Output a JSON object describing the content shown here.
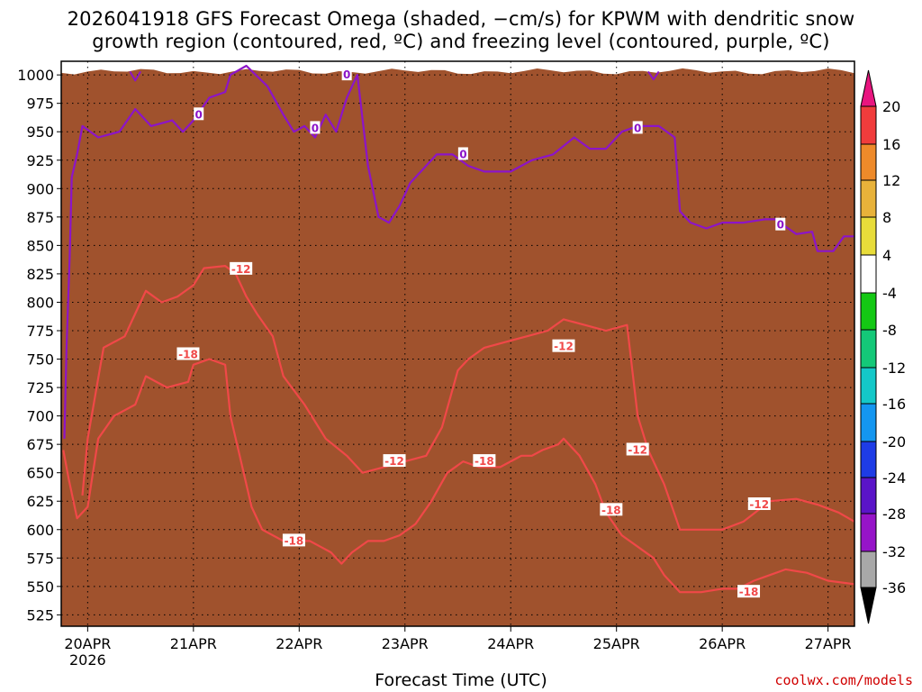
{
  "title_line1": "2026041918 GFS Forecast Omega (shaded, −cm/s) for KPWM with dendritic snow",
  "title_line2": "growth region (contoured, red, ºC) and freezing level (contoured, purple, ºC)",
  "credit": "coolwx.com/models",
  "chart_data": {
    "type": "heatmap",
    "title": "2026041918 GFS Forecast Omega (shaded, −cm/s) for KPWM with dendritic snow growth region (contoured, red, ºC) and freezing level (contoured, purple, ºC)",
    "xlabel": "Forecast Time (UTC)",
    "ylabel": "",
    "x_ticks": [
      "20APR",
      "21APR",
      "22APR",
      "23APR",
      "24APR",
      "25APR",
      "26APR",
      "27APR"
    ],
    "x_tick_sublabel": "2026",
    "xlim_days": [
      19.75,
      27.25
    ],
    "y_ticks": [
      525,
      550,
      575,
      600,
      625,
      650,
      675,
      700,
      725,
      750,
      775,
      800,
      825,
      850,
      875,
      900,
      925,
      950,
      975,
      1000
    ],
    "ylim_hpa": [
      1012,
      515
    ],
    "grid": true,
    "colorbar": {
      "labels": [
        "20",
        "16",
        "12",
        "8",
        "4",
        "-4",
        "-8",
        "-12",
        "-16",
        "-20",
        "-24",
        "-28",
        "-32",
        "-36"
      ],
      "colors": {
        "c20": "#e8157f",
        "c16": "#f03c3c",
        "c12": "#ee8a2a",
        "c8": "#e8b23a",
        "c4": "#e8dc3a",
        "cwhite": "#ffffff",
        "cm4": "#14c814",
        "cm8": "#14c878",
        "cm12": "#14c8c8",
        "cm16": "#1496f0",
        "cm20": "#1e3ce6",
        "cm24": "#5a14c8",
        "cm28": "#9614c8",
        "cm32": "#a8a8a8",
        "cm36": "#000000"
      }
    },
    "contours": {
      "dendritic_red": {
        "color": "#f04848",
        "labels": [
          {
            "text": "-18",
            "day": 20.95,
            "hpa": 754
          },
          {
            "text": "-12",
            "day": 21.45,
            "hpa": 829
          },
          {
            "text": "-18",
            "day": 21.95,
            "hpa": 590
          },
          {
            "text": "-12",
            "day": 22.9,
            "hpa": 660
          },
          {
            "text": "-18",
            "day": 23.75,
            "hpa": 660
          },
          {
            "text": "-12",
            "day": 24.5,
            "hpa": 761
          },
          {
            "text": "-18",
            "day": 24.95,
            "hpa": 617
          },
          {
            "text": "-12",
            "day": 25.2,
            "hpa": 670
          },
          {
            "text": "-18",
            "day": 26.25,
            "hpa": 545
          },
          {
            "text": "-12",
            "day": 26.35,
            "hpa": 622
          }
        ],
        "line_18": [
          [
            19.77,
            670
          ],
          [
            19.82,
            645
          ],
          [
            19.9,
            610
          ],
          [
            20.0,
            620
          ],
          [
            20.05,
            650
          ],
          [
            20.1,
            680
          ],
          [
            20.25,
            700
          ],
          [
            20.45,
            710
          ],
          [
            20.55,
            735
          ],
          [
            20.75,
            725
          ],
          [
            20.95,
            730
          ],
          [
            21.0,
            745
          ],
          [
            21.15,
            750
          ],
          [
            21.3,
            745
          ],
          [
            21.35,
            700
          ],
          [
            21.45,
            660
          ],
          [
            21.55,
            620
          ],
          [
            21.65,
            600
          ],
          [
            21.85,
            590
          ],
          [
            22.1,
            590
          ],
          [
            22.2,
            585
          ],
          [
            22.3,
            580
          ],
          [
            22.4,
            570
          ],
          [
            22.5,
            580
          ],
          [
            22.65,
            590
          ],
          [
            22.8,
            590
          ],
          [
            22.95,
            595
          ],
          [
            23.1,
            605
          ],
          [
            23.25,
            625
          ],
          [
            23.4,
            650
          ],
          [
            23.55,
            660
          ],
          [
            23.7,
            655
          ],
          [
            23.9,
            655
          ],
          [
            24.0,
            660
          ],
          [
            24.1,
            665
          ],
          [
            24.2,
            665
          ],
          [
            24.3,
            670
          ],
          [
            24.45,
            675
          ],
          [
            24.5,
            680
          ],
          [
            24.65,
            665
          ],
          [
            24.8,
            640
          ],
          [
            24.9,
            615
          ],
          [
            25.05,
            595
          ],
          [
            25.2,
            585
          ],
          [
            25.35,
            575
          ],
          [
            25.45,
            560
          ],
          [
            25.6,
            545
          ],
          [
            25.8,
            545
          ],
          [
            26.0,
            548
          ],
          [
            26.15,
            548
          ],
          [
            26.3,
            555
          ],
          [
            26.45,
            560
          ],
          [
            26.6,
            565
          ],
          [
            26.8,
            562
          ],
          [
            27.0,
            555
          ],
          [
            27.25,
            552
          ]
        ],
        "line_12": [
          [
            19.95,
            630
          ],
          [
            20.0,
            680
          ],
          [
            20.15,
            760
          ],
          [
            20.35,
            770
          ],
          [
            20.45,
            790
          ],
          [
            20.55,
            810
          ],
          [
            20.7,
            800
          ],
          [
            20.85,
            805
          ],
          [
            21.0,
            815
          ],
          [
            21.1,
            830
          ],
          [
            21.3,
            832
          ],
          [
            21.4,
            825
          ],
          [
            21.5,
            805
          ],
          [
            21.6,
            790
          ],
          [
            21.75,
            770
          ],
          [
            21.85,
            735
          ],
          [
            22.05,
            710
          ],
          [
            22.25,
            680
          ],
          [
            22.45,
            665
          ],
          [
            22.6,
            650
          ],
          [
            22.8,
            655
          ],
          [
            23.0,
            660
          ],
          [
            23.2,
            665
          ],
          [
            23.35,
            690
          ],
          [
            23.5,
            740
          ],
          [
            23.6,
            750
          ],
          [
            23.75,
            760
          ],
          [
            23.95,
            765
          ],
          [
            24.15,
            770
          ],
          [
            24.35,
            775
          ],
          [
            24.5,
            785
          ],
          [
            24.7,
            780
          ],
          [
            24.9,
            775
          ],
          [
            25.1,
            780
          ],
          [
            25.2,
            700
          ],
          [
            25.3,
            670
          ],
          [
            25.45,
            640
          ],
          [
            25.6,
            600
          ],
          [
            25.8,
            600
          ],
          [
            26.0,
            600
          ],
          [
            26.2,
            607
          ],
          [
            26.45,
            625
          ],
          [
            26.7,
            627
          ],
          [
            26.9,
            622
          ],
          [
            27.1,
            615
          ],
          [
            27.25,
            607
          ]
        ]
      },
      "freezing_purple": {
        "color": "#8c14c8",
        "labels": [
          {
            "text": "0",
            "day": 21.05,
            "hpa": 965
          },
          {
            "text": "0",
            "day": 22.15,
            "hpa": 953
          },
          {
            "text": "0",
            "day": 22.45,
            "hpa": 1000
          },
          {
            "text": "0",
            "day": 23.55,
            "hpa": 930
          },
          {
            "text": "0",
            "day": 25.2,
            "hpa": 953
          },
          {
            "text": "0",
            "day": 26.55,
            "hpa": 868
          }
        ],
        "line_0": [
          [
            19.85,
            910
          ],
          [
            19.9,
            930
          ],
          [
            19.95,
            955
          ],
          [
            20.1,
            945
          ],
          [
            20.3,
            950
          ],
          [
            20.45,
            970
          ],
          [
            20.6,
            955
          ],
          [
            20.8,
            960
          ],
          [
            20.9,
            950
          ],
          [
            21.0,
            960
          ],
          [
            21.15,
            980
          ],
          [
            21.3,
            985
          ],
          [
            21.35,
            1000
          ],
          [
            21.5,
            1008
          ],
          [
            21.7,
            990
          ],
          [
            21.85,
            965
          ],
          [
            21.95,
            950
          ],
          [
            22.05,
            955
          ],
          [
            22.15,
            945
          ],
          [
            22.25,
            965
          ],
          [
            22.35,
            950
          ],
          [
            22.45,
            980
          ],
          [
            22.55,
            1000
          ],
          [
            22.65,
            920
          ],
          [
            22.75,
            875
          ],
          [
            22.85,
            870
          ],
          [
            22.95,
            885
          ],
          [
            23.05,
            905
          ],
          [
            23.15,
            915
          ],
          [
            23.3,
            930
          ],
          [
            23.45,
            930
          ],
          [
            23.6,
            920
          ],
          [
            23.75,
            915
          ],
          [
            24.0,
            915
          ],
          [
            24.2,
            925
          ],
          [
            24.4,
            930
          ],
          [
            24.6,
            945
          ],
          [
            24.75,
            935
          ],
          [
            24.9,
            935
          ],
          [
            25.05,
            950
          ],
          [
            25.2,
            955
          ],
          [
            25.4,
            955
          ],
          [
            25.55,
            945
          ],
          [
            25.6,
            880
          ],
          [
            25.7,
            870
          ],
          [
            25.85,
            865
          ],
          [
            26.0,
            870
          ],
          [
            26.2,
            870
          ],
          [
            26.4,
            873
          ],
          [
            26.5,
            873
          ],
          [
            26.7,
            860
          ],
          [
            26.85,
            862
          ],
          [
            26.9,
            845
          ],
          [
            27.05,
            845
          ],
          [
            27.15,
            858
          ],
          [
            27.25,
            858
          ]
        ]
      }
    },
    "ground_terrain": {
      "color": "#a0522d",
      "hpa": 1003
    }
  }
}
